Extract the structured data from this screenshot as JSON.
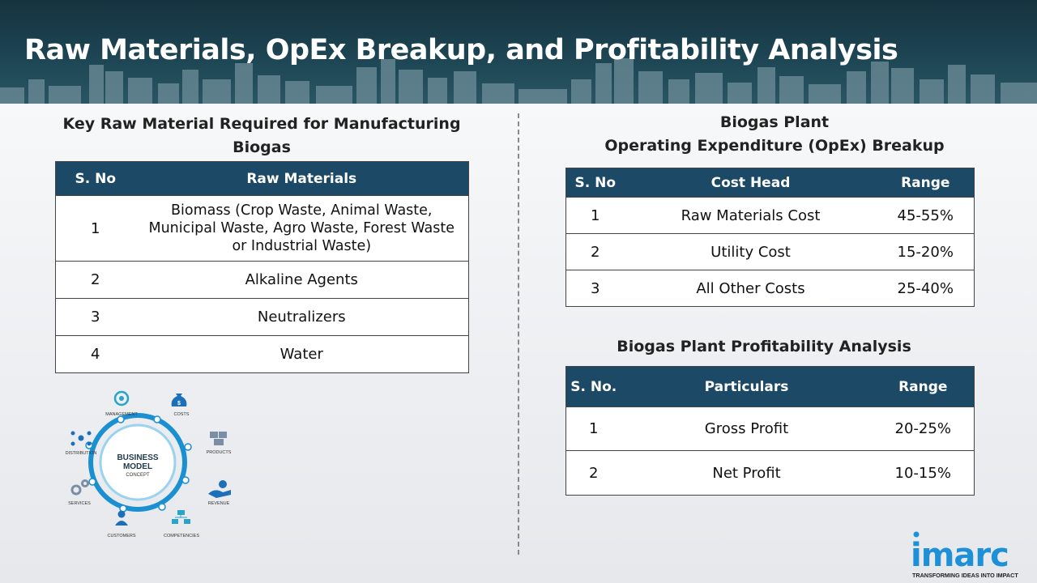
{
  "title": "Raw Materials, OpEx Breakup, and Profitability Analysis",
  "raw_materials": {
    "heading_line1": "Key Raw Material Required for Manufacturing",
    "heading_line2": "Biogas",
    "columns": [
      "S. No",
      "Raw Materials"
    ],
    "rows": [
      {
        "no": "1",
        "line1": "Biomass (Crop Waste, Animal Waste,",
        "line2": "Municipal Waste, Agro Waste, Forest Waste",
        "line3": "or Industrial Waste)"
      },
      {
        "no": "2",
        "text": "Alkaline Agents"
      },
      {
        "no": "3",
        "text": "Neutralizers"
      },
      {
        "no": "4",
        "text": "Water"
      }
    ]
  },
  "opex": {
    "heading_line1": "Biogas Plant",
    "heading_line2": "Operating Expenditure (OpEx) Breakup",
    "columns": [
      "S. No",
      "Cost Head",
      "Range"
    ],
    "rows": [
      {
        "no": "1",
        "head": "Raw Materials Cost",
        "range": "45-55%"
      },
      {
        "no": "2",
        "head": "Utility Cost",
        "range": "15-20%"
      },
      {
        "no": "3",
        "head": "All Other Costs",
        "range": "25-40%"
      }
    ]
  },
  "profit": {
    "heading": "Biogas Plant Profitability Analysis",
    "columns": [
      "S. No.",
      "Particulars",
      "Range"
    ],
    "rows": [
      {
        "no": "1",
        "particular": "Gross Profit",
        "range": "20-25%"
      },
      {
        "no": "2",
        "particular": "Net Profit",
        "range": "10-15%"
      }
    ]
  },
  "business_model": {
    "center_line1": "BUSINESS",
    "center_line2": "MODEL",
    "center_line3": "CONCEPT",
    "labels": [
      "MANAGEMENT",
      "COSTS",
      "PRODUCTS",
      "REVENUE",
      "COMPETENCIES",
      "CUSTOMERS",
      "SERVICES",
      "DISTRIBUTION"
    ],
    "icons": [
      "lightbulb-gear-icon",
      "money-bag-icon",
      "boxes-icon",
      "hand-money-icon",
      "network-icon",
      "person-icon",
      "gears-icon",
      "distribution-icon"
    ]
  },
  "logo": {
    "name": "imarc",
    "tagline": "TRANSFORMING IDEAS INTO IMPACT"
  },
  "colors": {
    "header_dark": "#16323f",
    "table_header": "#1c4966",
    "accent_blue": "#1e90d8"
  }
}
